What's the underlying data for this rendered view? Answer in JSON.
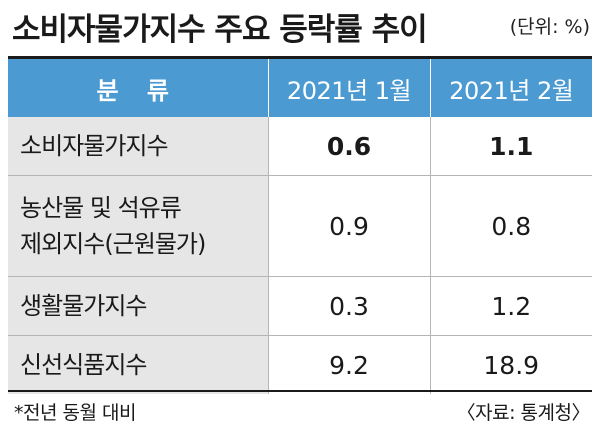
{
  "title": "소비자물가지수 주요 등락률 추이",
  "unit": "(단위: %)",
  "headers": [
    "분 류",
    "2021년 1월",
    "2021년 2월"
  ],
  "rows": [
    {
      "name": "소비자물가지수",
      "jan": "0.6",
      "feb": "1.1"
    },
    {
      "name_line1": "농산물 및 석유류",
      "name_line2": "제외지수(근원물가)",
      "jan": "0.9",
      "feb": "0.8"
    },
    {
      "name": "생활물가지수",
      "jan": "0.3",
      "feb": "1.2"
    },
    {
      "name": "신선식품지수",
      "jan": "9.2",
      "feb": "18.9"
    }
  ],
  "footnote": "*전년 동월 대비",
  "source": "〈자료: 통계청〉",
  "colors": {
    "header_bg": "#4b9ad1",
    "label_bg": "#e6e6e6"
  }
}
